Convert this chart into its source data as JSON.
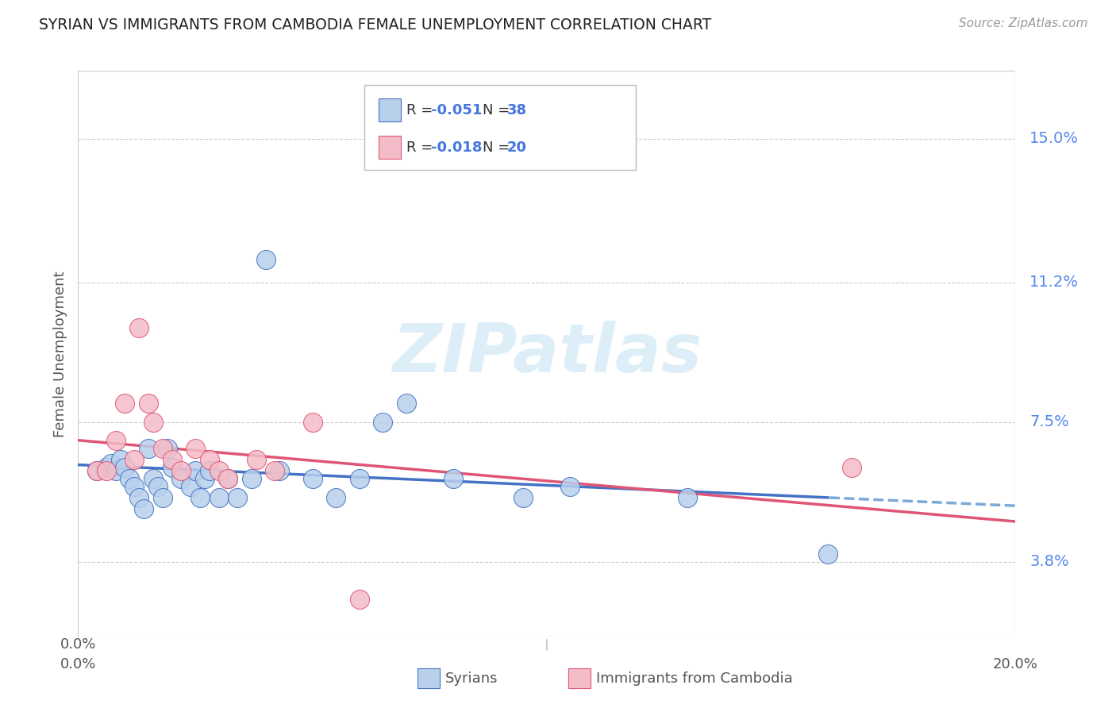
{
  "title": "SYRIAN VS IMMIGRANTS FROM CAMBODIA FEMALE UNEMPLOYMENT CORRELATION CHART",
  "source": "Source: ZipAtlas.com",
  "ylabel": "Female Unemployment",
  "ytick_labels": [
    "15.0%",
    "11.2%",
    "7.5%",
    "3.8%"
  ],
  "ytick_values": [
    0.15,
    0.112,
    0.075,
    0.038
  ],
  "xlim": [
    0.0,
    0.2
  ],
  "ylim": [
    0.018,
    0.168
  ],
  "legend_r1": "-0.051",
  "legend_n1": "38",
  "legend_r2": "-0.018",
  "legend_n2": "20",
  "color_syrian_fill": "#b8d0ec",
  "color_syrian_edge": "#4472c4",
  "color_cambodia_fill": "#f4bcc8",
  "color_cambodia_edge": "#e05575",
  "color_trend_syrian_solid": "#4472c4",
  "color_trend_syrian_dash": "#7aaad8",
  "color_trend_cambodia": "#e05575",
  "watermark_color": "#ddeef8",
  "syrians_x": [
    0.004,
    0.006,
    0.007,
    0.008,
    0.009,
    0.01,
    0.011,
    0.012,
    0.013,
    0.014,
    0.015,
    0.016,
    0.017,
    0.018,
    0.019,
    0.02,
    0.022,
    0.024,
    0.025,
    0.026,
    0.027,
    0.028,
    0.03,
    0.032,
    0.034,
    0.037,
    0.04,
    0.043,
    0.05,
    0.055,
    0.06,
    0.065,
    0.07,
    0.08,
    0.095,
    0.105,
    0.13,
    0.16
  ],
  "syrians_y": [
    0.062,
    0.063,
    0.064,
    0.062,
    0.065,
    0.063,
    0.06,
    0.058,
    0.055,
    0.052,
    0.068,
    0.06,
    0.058,
    0.055,
    0.068,
    0.063,
    0.06,
    0.058,
    0.062,
    0.055,
    0.06,
    0.062,
    0.055,
    0.06,
    0.055,
    0.06,
    0.118,
    0.062,
    0.06,
    0.055,
    0.06,
    0.075,
    0.08,
    0.06,
    0.055,
    0.058,
    0.055,
    0.04
  ],
  "cambodia_x": [
    0.004,
    0.006,
    0.008,
    0.01,
    0.012,
    0.013,
    0.015,
    0.016,
    0.018,
    0.02,
    0.022,
    0.025,
    0.028,
    0.03,
    0.032,
    0.038,
    0.042,
    0.05,
    0.06,
    0.165
  ],
  "cambodia_y": [
    0.062,
    0.062,
    0.07,
    0.08,
    0.065,
    0.1,
    0.08,
    0.075,
    0.068,
    0.065,
    0.062,
    0.068,
    0.065,
    0.062,
    0.06,
    0.065,
    0.062,
    0.075,
    0.028,
    0.063
  ]
}
